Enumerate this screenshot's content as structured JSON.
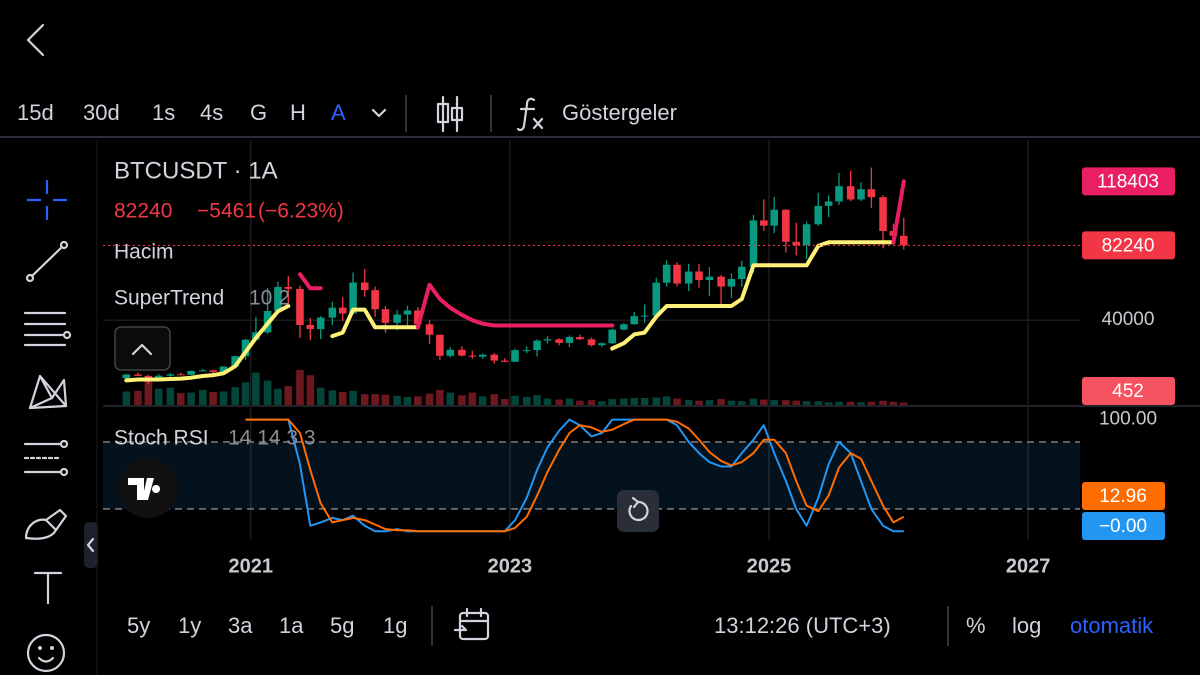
{
  "toolbar": {
    "intervals": [
      "15d",
      "30d",
      "1s",
      "4s",
      "G",
      "H",
      "A"
    ],
    "indicators": "Göstergeler"
  },
  "legend": {
    "symbol": "BTCUSDT · 1A",
    "change": "−5461",
    "change_pct": "(−6.23%)",
    "volume": "Hacim",
    "supertrend": "SuperTrend",
    "supertrend_params": "10 2",
    "stoch": "Stoch RSI",
    "stoch_params": "14 14 3 3"
  },
  "bottom_bar": {
    "ranges": [
      "5y",
      "1y",
      "3a",
      "1a",
      "5g",
      "1g"
    ],
    "time": "13:12:26 (UTC+3)",
    "percent": "%",
    "log": "log",
    "auto": "otomatik"
  },
  "chart_data": [
    {
      "type": "candlestick",
      "x": [
        2020.04,
        2020.13,
        2020.21,
        2020.29,
        2020.38,
        2020.46,
        2020.54,
        2020.63,
        2020.71,
        2020.79,
        2020.88,
        2020.96,
        2021.04,
        2021.13,
        2021.21,
        2021.29,
        2021.38,
        2021.46,
        2021.54,
        2021.63,
        2021.71,
        2021.79,
        2021.88,
        2021.96,
        2022.04,
        2022.13,
        2022.21,
        2022.29,
        2022.38,
        2022.46,
        2022.54,
        2022.63,
        2022.71,
        2022.79,
        2022.88,
        2022.96,
        2023.04,
        2023.13,
        2023.21,
        2023.29,
        2023.38,
        2023.46,
        2023.54,
        2023.63,
        2023.71,
        2023.79,
        2023.88,
        2023.96,
        2024.04,
        2024.13,
        2024.21,
        2024.29,
        2024.38,
        2024.46,
        2024.54,
        2024.63,
        2024.71,
        2024.79,
        2024.88,
        2024.96,
        2025.04,
        2025.13,
        2025.21,
        2025.29,
        2025.38,
        2025.46,
        2025.54,
        2025.63,
        2025.71,
        2025.79,
        2025.88,
        2025.96,
        2026.04
      ],
      "open": [
        7200,
        9350,
        8550,
        6400,
        8650,
        9450,
        9150,
        11350,
        11650,
        10800,
        13800,
        19700,
        29000,
        33100,
        45200,
        58800,
        57700,
        37300,
        35000,
        41500,
        47100,
        43800,
        61300,
        57000,
        46200,
        38500,
        43200,
        45500,
        37700,
        31800,
        19900,
        23300,
        20000,
        19400,
        20500,
        17200,
        16500,
        23100,
        23100,
        28500,
        29200,
        27200,
        30500,
        29200,
        25900,
        27000,
        34700,
        37700,
        42300,
        42600,
        61200,
        71300,
        60700,
        67500,
        62700,
        64600,
        59000,
        63300,
        70200,
        96400,
        93400,
        102400,
        84300,
        82500,
        94200,
        104600,
        107100,
        115700,
        108200,
        114000,
        109500,
        90400,
        87701
      ],
      "high": [
        9600,
        10500,
        9200,
        9500,
        10100,
        10400,
        11450,
        12500,
        12100,
        14100,
        19900,
        29300,
        41900,
        58300,
        61800,
        64900,
        59600,
        41300,
        42400,
        50500,
        52900,
        67000,
        69000,
        59000,
        48000,
        45800,
        48200,
        47400,
        40000,
        31900,
        24700,
        25200,
        22800,
        21100,
        21500,
        18400,
        23900,
        25300,
        29200,
        31000,
        29800,
        31400,
        31800,
        30200,
        27500,
        35200,
        38400,
        44700,
        48900,
        64000,
        73800,
        72800,
        71900,
        71900,
        70000,
        65600,
        66500,
        73600,
        99600,
        108300,
        109600,
        102700,
        95000,
        95800,
        112000,
        110500,
        123200,
        124500,
        117900,
        126200,
        110600,
        94500,
        97900
      ],
      "low": [
        6900,
        8400,
        3800,
        6150,
        8100,
        8900,
        8950,
        11100,
        9900,
        10400,
        13200,
        17600,
        28100,
        32300,
        45000,
        47000,
        30000,
        28800,
        29300,
        37300,
        39600,
        43300,
        53300,
        42000,
        32900,
        34300,
        37200,
        37600,
        26700,
        17600,
        18800,
        19500,
        18100,
        18200,
        15500,
        16300,
        16500,
        21400,
        19500,
        26900,
        25800,
        24800,
        28900,
        25200,
        24900,
        26600,
        34100,
        37600,
        38500,
        41900,
        59000,
        59200,
        56500,
        58400,
        53500,
        49000,
        52600,
        58900,
        66800,
        90500,
        89200,
        78200,
        76600,
        74400,
        93300,
        98200,
        105100,
        107300,
        107300,
        103500,
        80600,
        84400,
        80000
      ],
      "close": [
        9350,
        8550,
        6400,
        8650,
        9450,
        9150,
        11350,
        11650,
        10800,
        13800,
        19700,
        29000,
        33100,
        45200,
        58800,
        57700,
        37300,
        35000,
        41500,
        47100,
        43800,
        61300,
        57000,
        46200,
        38500,
        43200,
        45500,
        37700,
        31800,
        19900,
        23300,
        20000,
        19400,
        20500,
        17200,
        16500,
        23100,
        23100,
        28500,
        29200,
        27200,
        30500,
        29200,
        25900,
        27000,
        34700,
        37700,
        42300,
        42600,
        61200,
        71300,
        60700,
        67500,
        62700,
        64600,
        59000,
        63300,
        70200,
        96400,
        93400,
        102400,
        84300,
        82500,
        94200,
        104600,
        107100,
        115700,
        108200,
        114000,
        109500,
        90400,
        87701,
        82240
      ],
      "volume": [
        2500,
        2600,
        4500,
        3000,
        3200,
        2200,
        2300,
        2800,
        2400,
        2500,
        3300,
        4200,
        6000,
        4500,
        3000,
        3500,
        6500,
        5500,
        3200,
        2700,
        2400,
        2600,
        2000,
        2000,
        1900,
        1700,
        1500,
        1600,
        2100,
        2800,
        2300,
        1800,
        2300,
        1600,
        2000,
        1100,
        1700,
        1500,
        1800,
        1200,
        1000,
        1200,
        800,
        900,
        700,
        1100,
        1200,
        1300,
        1300,
        1400,
        1600,
        1200,
        900,
        800,
        900,
        1100,
        800,
        700,
        1200,
        1000,
        900,
        900,
        800,
        700,
        700,
        500,
        600,
        600,
        500,
        600,
        800,
        600,
        452
      ],
      "supertrend_up": [
        6000,
        6500,
        6500,
        6500,
        6800,
        7000,
        7500,
        8500,
        9000,
        10000,
        14000,
        22000,
        30000,
        38000,
        45000,
        48000,
        null,
        null,
        null,
        31000,
        33000,
        46000,
        46000,
        36000,
        36000,
        36000,
        36000,
        36000,
        null,
        null,
        null,
        null,
        null,
        null,
        null,
        null,
        null,
        null,
        null,
        null,
        null,
        null,
        null,
        null,
        null,
        24000,
        27000,
        32000,
        33000,
        42000,
        48000,
        48000,
        48000,
        48000,
        48000,
        48000,
        48000,
        52000,
        71000,
        71000,
        71000,
        71000,
        71000,
        71000,
        82000,
        84000,
        84000,
        84000,
        84000,
        84000,
        84000,
        84000,
        null
      ],
      "supertrend_down": [
        null,
        null,
        null,
        null,
        null,
        null,
        null,
        null,
        null,
        null,
        null,
        null,
        null,
        null,
        null,
        null,
        66000,
        58000,
        58000,
        null,
        null,
        null,
        null,
        null,
        null,
        null,
        null,
        36000,
        60000,
        52000,
        47000,
        43000,
        40000,
        38000,
        37000,
        37000,
        37000,
        37000,
        37000,
        37000,
        37000,
        37000,
        37000,
        37000,
        37000,
        37000,
        null,
        null,
        null,
        null,
        null,
        null,
        null,
        null,
        null,
        null,
        null,
        null,
        null,
        null,
        null,
        null,
        null,
        null,
        null,
        null,
        null,
        null,
        null,
        null,
        null,
        84000,
        118403
      ],
      "up_color": "#089981",
      "down_color": "#f23645",
      "supertrend_up_color": "#fff176",
      "supertrend_down_color": "#e91e63",
      "xlim": [
        2019.86,
        2027.4
      ],
      "xticks": [
        2021,
        2023,
        2025,
        2027
      ],
      "ylim": [
        -7900,
        141800
      ],
      "yticks": [
        40000
      ],
      "volume_lim": [
        0,
        49000
      ],
      "grid": true
    },
    {
      "type": "line",
      "x": [
        2020.04,
        2020.13,
        2020.21,
        2020.29,
        2020.38,
        2020.46,
        2020.54,
        2020.63,
        2020.71,
        2020.79,
        2020.88,
        2020.96,
        2021.04,
        2021.13,
        2021.21,
        2021.29,
        2021.38,
        2021.46,
        2021.54,
        2021.63,
        2021.71,
        2021.79,
        2021.88,
        2021.96,
        2022.04,
        2022.13,
        2022.21,
        2022.29,
        2022.38,
        2022.46,
        2022.54,
        2022.63,
        2022.71,
        2022.79,
        2022.88,
        2022.96,
        2023.04,
        2023.13,
        2023.21,
        2023.29,
        2023.38,
        2023.46,
        2023.54,
        2023.63,
        2023.71,
        2023.79,
        2023.88,
        2023.96,
        2024.04,
        2024.13,
        2024.21,
        2024.29,
        2024.38,
        2024.46,
        2024.54,
        2024.63,
        2024.71,
        2024.79,
        2024.88,
        2024.96,
        2025.04,
        2025.13,
        2025.21,
        2025.29,
        2025.38,
        2025.46,
        2025.54,
        2025.63,
        2025.71,
        2025.79,
        2025.88,
        2025.96,
        2026.04
      ],
      "series": [
        {
          "color": "#2196f3",
          "values": [
            null,
            null,
            null,
            null,
            null,
            null,
            null,
            null,
            null,
            null,
            null,
            100,
            100,
            100,
            100,
            100,
            60,
            5,
            8,
            12,
            10,
            14,
            5,
            0,
            0,
            2,
            0,
            0,
            0,
            0,
            0,
            0,
            0,
            0,
            0,
            0,
            10,
            30,
            55,
            75,
            90,
            100,
            95,
            85,
            88,
            100,
            100,
            100,
            100,
            100,
            100,
            95,
            80,
            70,
            62,
            58,
            58,
            70,
            82,
            95,
            70,
            45,
            20,
            5,
            30,
            60,
            80,
            70,
            45,
            20,
            5,
            0,
            0
          ],
          "value_labels": [
            null,
            null,
            null,
            null,
            null,
            null,
            null,
            null,
            null,
            null,
            null,
            null,
            null,
            null,
            null,
            null,
            null,
            null,
            null,
            null,
            null,
            null,
            null,
            null,
            null,
            null,
            null,
            null,
            null,
            null,
            null,
            null,
            null,
            null,
            null,
            null,
            null,
            null,
            null,
            null,
            null,
            null,
            null,
            null,
            null,
            null,
            null,
            null,
            null,
            null,
            null,
            null,
            null,
            null,
            null,
            null,
            null,
            null,
            null,
            null,
            null,
            null,
            null,
            null,
            null,
            null,
            null,
            null,
            null,
            null,
            null,
            null,
            "−0.00"
          ]
        },
        {
          "color": "#ff6d00",
          "values": [
            null,
            null,
            null,
            null,
            null,
            null,
            null,
            null,
            null,
            null,
            null,
            100,
            100,
            100,
            100,
            100,
            88,
            55,
            25,
            8,
            10,
            12,
            10,
            6,
            2,
            1,
            1,
            0,
            0,
            0,
            0,
            0,
            0,
            0,
            0,
            0,
            3,
            13,
            32,
            53,
            73,
            88,
            95,
            93,
            89,
            91,
            96,
            100,
            100,
            100,
            100,
            98,
            92,
            82,
            71,
            63,
            59,
            62,
            70,
            82,
            82,
            70,
            45,
            23,
            18,
            32,
            57,
            70,
            65,
            45,
            23,
            8,
            12.96
          ]
        }
      ],
      "bands": [
        20,
        80
      ],
      "band_color": "#2196f3",
      "xlim": [
        2019.86,
        2027.4
      ],
      "ylim": [
        -7.8,
        110.4
      ],
      "yticks": [
        {
          "value": 100,
          "label": "100.00"
        }
      ]
    }
  ]
}
